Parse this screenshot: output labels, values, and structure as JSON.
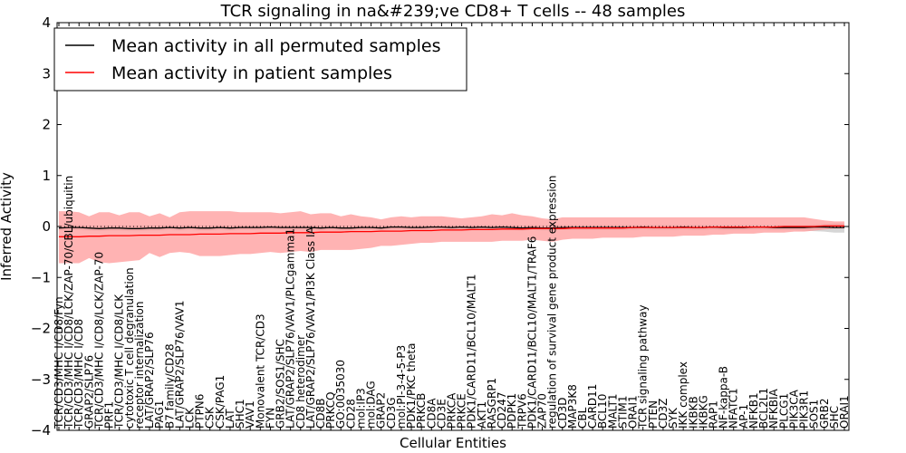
{
  "chart_data": {
    "type": "line",
    "title": "TCR signaling in na&#239;ve CD8+ T cells -- 48 samples",
    "xlabel": "Cellular Entities",
    "ylabel": "Inferred Activity",
    "ylim": [
      -4,
      4
    ],
    "yticks": [
      "−4",
      "−3",
      "−2",
      "−1",
      "0",
      "1",
      "2",
      "3",
      "4"
    ],
    "ytick_values": [
      -4,
      -3,
      -2,
      -1,
      0,
      1,
      2,
      3,
      4
    ],
    "categories": [
      "TCR/CD3/MHC I/CD8/Fyn",
      "TCR/CD3/MHC I/CD8/LCK/ZAP-70/CBL/ubiquitin",
      "TCR/CD3/MHC I/CD8",
      "GRAP2/SLP76",
      "TCR/CD3/MHC I/CD8/LCK/ZAP-70",
      "PRF1",
      "TCR/CD3/MHC I/CD8/LCK",
      "cytotoxic T cell degranulation",
      "receptor internalization",
      "LAT/GRAP2/SLP76",
      "PAG1",
      "B7 family/CD28",
      "LAT/GRAP2/SLP76/VAV1",
      "LCK",
      "PTPN6",
      "CSK",
      "CSK/PAG1",
      "LAT",
      "SHC1",
      "VAV1",
      "Monovalent TCR/CD3",
      "FYN",
      "GRB2/SOS1/SHC",
      "LAT/GRAP2/SLP76/VAV1/PLCgamma1",
      "CD8 heterodimer",
      "LAT/GRAP2/SLP76/VAV1/PI3K Class IA",
      "CD8B",
      "PRKCQ",
      "GO:0035030",
      "CD28",
      "mol:IP3",
      "mol:DAG",
      "GRAP2",
      "CD3G",
      "mol:PI-3-4-5-P3",
      "PDK1/PKC theta",
      "PRKCB",
      "CD8A",
      "CD3E",
      "PRKCA",
      "PRKCE",
      "PDK1/CARD11/BCL10/MALT1",
      "AKT1",
      "RASGRP1",
      "CD247",
      "PDPK1",
      "TRPV6",
      "PDK1/CARD11/BCL10/MALT1/TRAF6",
      "ZAP70",
      "regulation of survival gene product expression",
      "CD3D",
      "MAP3K8",
      "CBL",
      "CARD11",
      "BCL10",
      "MALT1",
      "STIM1",
      "ORAI1",
      "TCR signaling pathway",
      "PTEN",
      "CD3Z",
      "SYK",
      "IKK complex",
      "IKBKB",
      "IKBKG",
      "RAP1",
      "NF-kappa-B",
      "NFATC1",
      "AP-1",
      "NFKB1",
      "BCL2L1",
      "NFKBIA",
      "PLCG1",
      "PIK3CA",
      "PIK3R1",
      "SOS1",
      "GRB2",
      "SHC",
      "ORAI1"
    ],
    "visible_label_ids": [
      0,
      1,
      2,
      3,
      4,
      5,
      6,
      7,
      8,
      9,
      10,
      11,
      12,
      13,
      14,
      15,
      16,
      17,
      18,
      19,
      20,
      21,
      22,
      23,
      24,
      25,
      26,
      27,
      28,
      29,
      30,
      31,
      32,
      33,
      34,
      35,
      36,
      37,
      38,
      39,
      40,
      41,
      42,
      43,
      44,
      45,
      46,
      47,
      48,
      49,
      50,
      51,
      52,
      53,
      54,
      55,
      56,
      57,
      58,
      59,
      60,
      61,
      62,
      63,
      64,
      65,
      66,
      67,
      68,
      69,
      70,
      71,
      72,
      73,
      74,
      75,
      76,
      77,
      78
    ],
    "series": [
      {
        "name": "Mean activity in all permuted samples",
        "color": "#000000",
        "band_color": "#cccccc",
        "values": [
          -0.03,
          -0.02,
          -0.02,
          -0.03,
          -0.04,
          -0.03,
          -0.03,
          -0.04,
          -0.04,
          -0.03,
          -0.03,
          -0.02,
          -0.03,
          -0.02,
          -0.03,
          -0.03,
          -0.02,
          -0.03,
          -0.02,
          -0.02,
          -0.02,
          -0.01,
          -0.02,
          -0.02,
          -0.02,
          -0.02,
          -0.03,
          -0.02,
          -0.03,
          -0.03,
          -0.02,
          -0.02,
          -0.03,
          -0.01,
          -0.01,
          -0.02,
          -0.02,
          -0.01,
          -0.01,
          -0.02,
          -0.01,
          -0.02,
          -0.01,
          -0.02,
          -0.01,
          -0.02,
          -0.03,
          -0.02,
          -0.03,
          -0.03,
          -0.02,
          -0.02,
          -0.02,
          -0.02,
          -0.02,
          -0.02,
          -0.02,
          -0.02,
          -0.01,
          -0.02,
          -0.02,
          -0.02,
          -0.01,
          -0.02,
          -0.02,
          -0.01,
          -0.02,
          -0.02,
          -0.02,
          -0.01,
          -0.01,
          -0.02,
          -0.02,
          -0.02,
          -0.02,
          -0.01,
          -0.01,
          -0.02,
          -0.02
        ],
        "upper": [
          0.02,
          0.03,
          0.03,
          0.02,
          0.02,
          0.02,
          0.02,
          0.02,
          0.02,
          0.02,
          0.02,
          0.03,
          0.02,
          0.03,
          0.02,
          0.02,
          0.03,
          0.02,
          0.03,
          0.03,
          0.03,
          0.03,
          0.03,
          0.03,
          0.03,
          0.03,
          0.02,
          0.03,
          0.02,
          0.02,
          0.03,
          0.03,
          0.02,
          0.03,
          0.03,
          0.03,
          0.03,
          0.03,
          0.03,
          0.03,
          0.03,
          0.03,
          0.03,
          0.03,
          0.03,
          0.03,
          0.02,
          0.03,
          0.02,
          0.02,
          0.03,
          0.03,
          0.03,
          0.03,
          0.03,
          0.03,
          0.03,
          0.03,
          0.03,
          0.03,
          0.03,
          0.03,
          0.03,
          0.03,
          0.03,
          0.03,
          0.03,
          0.03,
          0.03,
          0.03,
          0.03,
          0.03,
          0.03,
          0.03,
          0.03,
          0.04,
          0.05,
          0.06,
          0.06
        ],
        "lower": [
          -0.08,
          -0.07,
          -0.07,
          -0.08,
          -0.09,
          -0.08,
          -0.08,
          -0.09,
          -0.09,
          -0.08,
          -0.08,
          -0.07,
          -0.08,
          -0.07,
          -0.08,
          -0.08,
          -0.07,
          -0.08,
          -0.07,
          -0.07,
          -0.07,
          -0.06,
          -0.07,
          -0.07,
          -0.07,
          -0.07,
          -0.08,
          -0.07,
          -0.08,
          -0.08,
          -0.07,
          -0.07,
          -0.08,
          -0.06,
          -0.06,
          -0.07,
          -0.07,
          -0.06,
          -0.06,
          -0.07,
          -0.06,
          -0.07,
          -0.06,
          -0.07,
          -0.06,
          -0.07,
          -0.08,
          -0.07,
          -0.08,
          -0.08,
          -0.07,
          -0.07,
          -0.07,
          -0.07,
          -0.07,
          -0.07,
          -0.07,
          -0.07,
          -0.06,
          -0.07,
          -0.07,
          -0.07,
          -0.06,
          -0.07,
          -0.07,
          -0.06,
          -0.07,
          -0.07,
          -0.07,
          -0.06,
          -0.06,
          -0.07,
          -0.07,
          -0.07,
          -0.08,
          -0.09,
          -0.1,
          -0.12,
          -0.12
        ]
      },
      {
        "name": "Mean activity in patient samples",
        "color": "#ff0000",
        "band_color": "#ff9999",
        "values": [
          -0.2,
          -0.2,
          -0.2,
          -0.19,
          -0.19,
          -0.18,
          -0.18,
          -0.18,
          -0.17,
          -0.17,
          -0.17,
          -0.16,
          -0.16,
          -0.16,
          -0.15,
          -0.15,
          -0.15,
          -0.14,
          -0.14,
          -0.14,
          -0.13,
          -0.13,
          -0.13,
          -0.12,
          -0.12,
          -0.12,
          -0.11,
          -0.11,
          -0.11,
          -0.1,
          -0.1,
          -0.1,
          -0.09,
          -0.09,
          -0.09,
          -0.08,
          -0.08,
          -0.08,
          -0.07,
          -0.07,
          -0.07,
          -0.06,
          -0.06,
          -0.06,
          -0.05,
          -0.05,
          -0.05,
          -0.04,
          -0.04,
          -0.04,
          -0.04,
          -0.03,
          -0.03,
          -0.03,
          -0.03,
          -0.03,
          -0.03,
          -0.02,
          -0.02,
          -0.02,
          -0.02,
          -0.02,
          -0.02,
          -0.02,
          -0.02,
          -0.01,
          -0.01,
          -0.01,
          -0.01,
          -0.01,
          -0.01,
          -0.01,
          0.0,
          0.0,
          0.0,
          0.0,
          0.01,
          0.01,
          0.01
        ],
        "upper": [
          0.3,
          0.3,
          0.28,
          0.2,
          0.28,
          0.28,
          0.22,
          0.28,
          0.28,
          0.2,
          0.26,
          0.18,
          0.28,
          0.3,
          0.3,
          0.3,
          0.3,
          0.3,
          0.28,
          0.28,
          0.28,
          0.28,
          0.26,
          0.28,
          0.3,
          0.24,
          0.26,
          0.26,
          0.2,
          0.24,
          0.2,
          0.18,
          0.14,
          0.18,
          0.2,
          0.18,
          0.2,
          0.2,
          0.2,
          0.18,
          0.16,
          0.18,
          0.2,
          0.24,
          0.22,
          0.26,
          0.22,
          0.2,
          0.16,
          0.14,
          0.18,
          0.18,
          0.18,
          0.18,
          0.18,
          0.18,
          0.18,
          0.18,
          0.18,
          0.18,
          0.18,
          0.18,
          0.18,
          0.18,
          0.18,
          0.18,
          0.18,
          0.18,
          0.18,
          0.18,
          0.18,
          0.18,
          0.18,
          0.18,
          0.18,
          0.15,
          0.12,
          0.1,
          0.1
        ],
        "lower": [
          -0.72,
          -0.72,
          -0.72,
          -0.62,
          -0.7,
          -0.72,
          -0.7,
          -0.68,
          -0.66,
          -0.52,
          -0.6,
          -0.52,
          -0.5,
          -0.52,
          -0.58,
          -0.58,
          -0.58,
          -0.56,
          -0.54,
          -0.54,
          -0.52,
          -0.5,
          -0.52,
          -0.5,
          -0.48,
          -0.5,
          -0.46,
          -0.46,
          -0.46,
          -0.46,
          -0.44,
          -0.42,
          -0.38,
          -0.38,
          -0.36,
          -0.34,
          -0.32,
          -0.32,
          -0.3,
          -0.3,
          -0.3,
          -0.3,
          -0.3,
          -0.3,
          -0.28,
          -0.28,
          -0.28,
          -0.26,
          -0.28,
          -0.3,
          -0.26,
          -0.24,
          -0.24,
          -0.24,
          -0.22,
          -0.22,
          -0.22,
          -0.22,
          -0.2,
          -0.2,
          -0.2,
          -0.2,
          -0.18,
          -0.18,
          -0.18,
          -0.16,
          -0.16,
          -0.14,
          -0.14,
          -0.14,
          -0.12,
          -0.12,
          -0.12,
          -0.1,
          -0.1,
          -0.08,
          -0.06,
          -0.04,
          -0.04
        ]
      }
    ],
    "legend": {
      "position": "top-left",
      "entries": [
        "Mean activity in all permuted samples",
        "Mean activity in patient samples"
      ]
    },
    "grid": false,
    "zero_line": "dotted"
  }
}
